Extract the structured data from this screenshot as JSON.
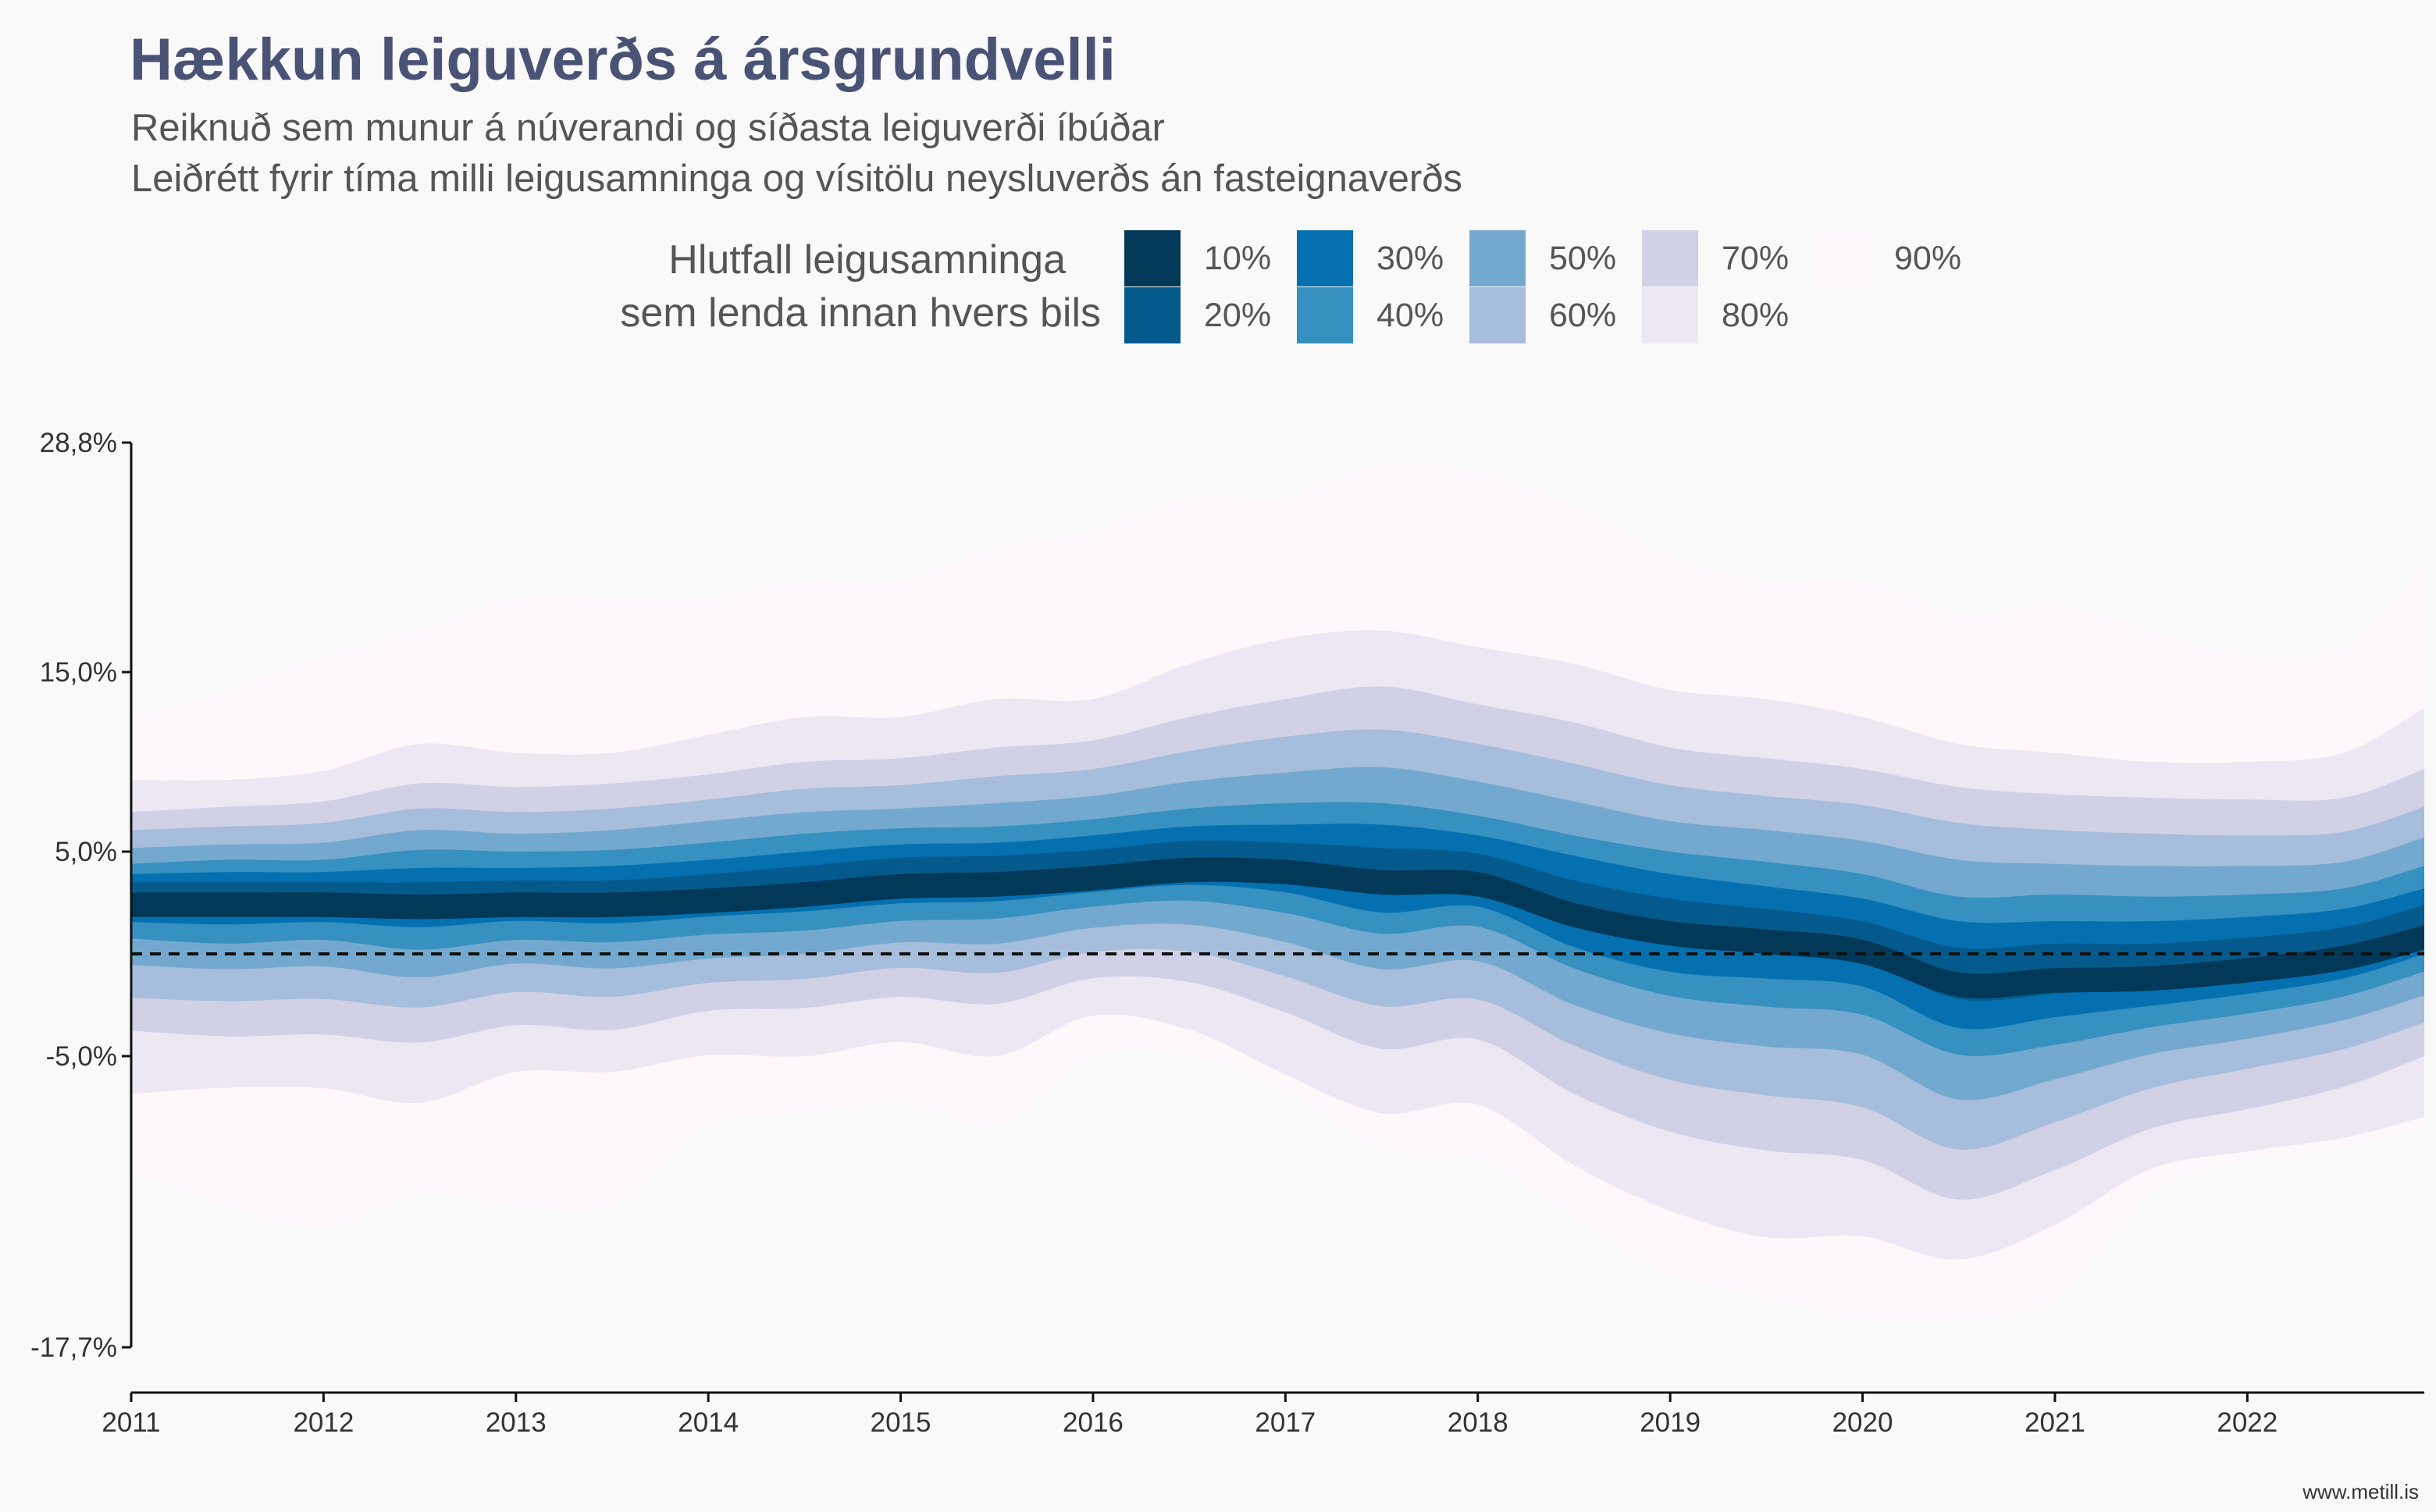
{
  "chart_data": {
    "type": "area",
    "title": "Hækkun leiguverðs á ársgrundvelli",
    "subtitle_lines": [
      "Reiknuð sem munur á núverandi og síðasta leiguverði íbúðar",
      "Leiðrétt fyrir tíma milli leigusamninga og vísitölu neysluverðs án fasteignaverðs"
    ],
    "legend": {
      "title_lines": [
        "Hlutfall leigusamninga",
        "sem lenda innan hvers bils"
      ],
      "position": "top",
      "items": [
        {
          "label": "10%",
          "color": "#023858"
        },
        {
          "label": "20%",
          "color": "#045a8d"
        },
        {
          "label": "30%",
          "color": "#0570b0"
        },
        {
          "label": "40%",
          "color": "#3690c0"
        },
        {
          "label": "50%",
          "color": "#74a9cf"
        },
        {
          "label": "60%",
          "color": "#a6bddb"
        },
        {
          "label": "70%",
          "color": "#d0d1e6"
        },
        {
          "label": "80%",
          "color": "#ece7f2"
        },
        {
          "label": "90%",
          "color": "#fff7fb"
        }
      ]
    },
    "x": [
      2011.0,
      2011.5,
      2012.0,
      2012.5,
      2013.0,
      2013.5,
      2014.0,
      2014.5,
      2015.0,
      2015.5,
      2016.0,
      2016.5,
      2017.0,
      2017.5,
      2018.0,
      2018.5,
      2019.0,
      2019.5,
      2020.0,
      2020.5,
      2021.0,
      2021.5,
      2022.0,
      2022.5,
      2022.92
    ],
    "median": [
      3.0,
      3.0,
      3.0,
      2.9,
      3.0,
      3.0,
      3.2,
      3.5,
      3.9,
      4.0,
      4.3,
      4.7,
      4.6,
      4.1,
      4.0,
      2.5,
      1.6,
      1.2,
      0.7,
      -0.9,
      -0.7,
      -0.6,
      -0.2,
      0.4,
      1.4
    ],
    "bands": [
      {
        "name": "90%",
        "upper": [
          12.5,
          14.0,
          16.0,
          17.5,
          19.5,
          19.5,
          19.5,
          20.5,
          20.5,
          22.5,
          23.5,
          25.5,
          25.5,
          27.5,
          27.0,
          25.0,
          22.0,
          20.5,
          20.5,
          18.5,
          19.0,
          17.5,
          16.0,
          16.5,
          21.5
        ],
        "lower": [
          -10.0,
          -11.5,
          -12.5,
          -11.0,
          -11.5,
          -11.5,
          -8.0,
          -7.5,
          -7.0,
          -8.0,
          -5.0,
          -5.0,
          -6.5,
          -9.0,
          -9.5,
          -12.0,
          -14.5,
          -15.5,
          -16.5,
          -16.5,
          -15.5,
          -11.0,
          -9.5,
          -9.0,
          -8.0
        ]
      },
      {
        "name": "80%",
        "upper": [
          9.0,
          9.0,
          9.5,
          11.0,
          10.5,
          10.5,
          11.5,
          12.5,
          12.5,
          13.5,
          13.5,
          15.5,
          17.0,
          17.5,
          16.5,
          15.5,
          14.0,
          13.5,
          12.5,
          11.0,
          10.5,
          10.0,
          10.0,
          10.5,
          13.0
        ]
      },
      {
        "name": "70%",
        "upper": [
          7.2,
          7.5,
          7.8,
          8.8,
          8.6,
          8.8,
          9.3,
          10.0,
          10.2,
          10.8,
          11.2,
          12.5,
          13.5,
          14.2,
          13.2,
          12.2,
          10.8,
          10.2,
          9.6,
          8.6,
          8.2,
          8.0,
          7.9,
          8.0,
          9.6
        ]
      },
      {
        "name": "60%",
        "upper": [
          6.2,
          6.4,
          6.6,
          7.4,
          7.2,
          7.4,
          7.9,
          8.5,
          8.7,
          9.2,
          9.6,
          10.6,
          11.4,
          11.8,
          11.0,
          9.9,
          8.7,
          8.1,
          7.6,
          6.6,
          6.2,
          6.0,
          5.9,
          6.1,
          7.5
        ]
      },
      {
        "name": "50%",
        "upper": [
          5.2,
          5.4,
          5.5,
          6.2,
          6.0,
          6.2,
          6.7,
          7.2,
          7.4,
          7.7,
          8.1,
          8.9,
          9.4,
          9.7,
          8.9,
          7.8,
          6.7,
          6.2,
          5.6,
          4.6,
          4.4,
          4.3,
          4.3,
          4.5,
          5.8
        ]
      },
      {
        "name": "40%",
        "upper": [
          4.4,
          4.6,
          4.6,
          5.1,
          5.0,
          5.1,
          5.5,
          6.0,
          6.3,
          6.4,
          6.8,
          7.4,
          7.7,
          7.7,
          7.0,
          5.9,
          5.0,
          4.5,
          3.9,
          2.8,
          2.9,
          2.8,
          2.9,
          3.2,
          4.3
        ]
      },
      {
        "name": "30%",
        "upper": [
          3.9,
          4.0,
          4.0,
          4.2,
          4.2,
          4.3,
          4.6,
          5.0,
          5.4,
          5.5,
          5.9,
          6.4,
          6.5,
          6.5,
          5.9,
          4.8,
          3.9,
          3.3,
          2.7,
          1.6,
          1.6,
          1.6,
          1.8,
          2.2,
          3.2
        ]
      },
      {
        "name": "20%",
        "upper": [
          3.5,
          3.5,
          3.5,
          3.5,
          3.6,
          3.6,
          3.9,
          4.3,
          4.7,
          4.8,
          5.1,
          5.6,
          5.5,
          5.2,
          4.9,
          3.6,
          2.7,
          2.2,
          1.6,
          0.3,
          0.5,
          0.5,
          0.8,
          1.3,
          2.4
        ]
      },
      {
        "name": "10%",
        "upper": [
          3.0,
          3.0,
          3.0,
          2.9,
          3.0,
          3.0,
          3.2,
          3.5,
          3.9,
          4.0,
          4.3,
          4.7,
          4.6,
          4.1,
          4.0,
          2.5,
          1.6,
          1.2,
          0.7,
          -0.9,
          -0.7,
          -0.6,
          -0.2,
          0.4,
          1.4
        ]
      }
    ],
    "xlim": [
      2011,
      2022.92
    ],
    "ylim": [
      -17.7,
      28.8
    ],
    "x_ticks": [
      "2011",
      "2012",
      "2013",
      "2014",
      "2015",
      "2016",
      "2017",
      "2018",
      "2019",
      "2020",
      "2021",
      "2022"
    ],
    "y_ticks": [
      "28,8%",
      "15,0%",
      "5,0%",
      "-5,0%",
      "-17,7%"
    ],
    "y_tick_values": [
      28.8,
      15.0,
      5.0,
      -5.0,
      -17.7
    ],
    "reference_line": {
      "y": 0,
      "style": "dashed"
    },
    "xlabel": "",
    "ylabel": "",
    "grid": false
  },
  "credit": "www.metill.is"
}
